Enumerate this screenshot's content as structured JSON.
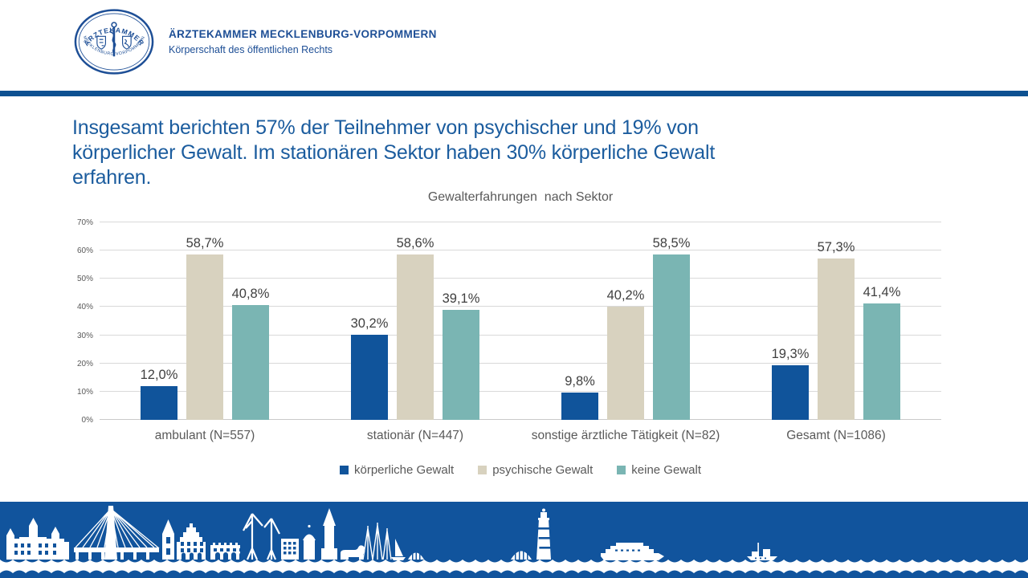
{
  "header": {
    "org_name": "ÄRZTEKAMMER MECKLENBURG-VORPOMMERN",
    "org_subtitle": "Körperschaft des öffentlichen Rechts",
    "seal_top_text": "ÄRZTEKAMMER",
    "seal_bottom_text": "MECKLENBURG-VORPOMMERN"
  },
  "slide_title": {
    "lines": [
      "Insgesamt berichten 57% der Teilnehmer von psychischer und 19% von",
      "körperlicher Gewalt. Im stationären Sektor haben 30% körperliche Gewalt",
      "erfahren."
    ]
  },
  "chart_data": {
    "type": "bar",
    "title": "Gewalterfahrungen  nach Sektor",
    "categories": [
      "ambulant (N=557)",
      "stationär (N=447)",
      "sonstige ärztliche Tätigkeit (N=82)",
      "Gesamt (N=1086)"
    ],
    "series": [
      {
        "name": "körperliche Gewalt",
        "color": "#10549B",
        "values": [
          12.0,
          30.2,
          9.8,
          19.3
        ],
        "labels": [
          "12,0%",
          "30,2%",
          "9,8%",
          "19,3%"
        ]
      },
      {
        "name": "psychische Gewalt",
        "color": "#D8D2BF",
        "values": [
          58.7,
          58.6,
          40.2,
          57.3
        ],
        "labels": [
          "58,7%",
          "58,6%",
          "40,2%",
          "57,3%"
        ]
      },
      {
        "name": "keine Gewalt",
        "color": "#7AB5B3",
        "values": [
          40.8,
          39.1,
          58.5,
          41.4
        ],
        "labels": [
          "40,8%",
          "39,1%",
          "58,5%",
          "41,4%"
        ]
      }
    ],
    "y_axis": {
      "ticks": [
        "0%",
        "10%",
        "20%",
        "30%",
        "40%",
        "50%",
        "60%",
        "70%"
      ],
      "min": 0,
      "max": 70,
      "step": 10
    },
    "xlabel": "",
    "ylabel": "",
    "ylim": [
      0,
      70
    ],
    "grid": true,
    "legend_position": "bottom"
  },
  "colors": {
    "title_blue": "#1B5C9E",
    "header_blue": "#1E4F96",
    "divider_blue": "#0E5191",
    "footer_blue": "#11549D",
    "axis_text": "#595959",
    "value_label": "#404040",
    "gridline": "#D9D9D9"
  }
}
